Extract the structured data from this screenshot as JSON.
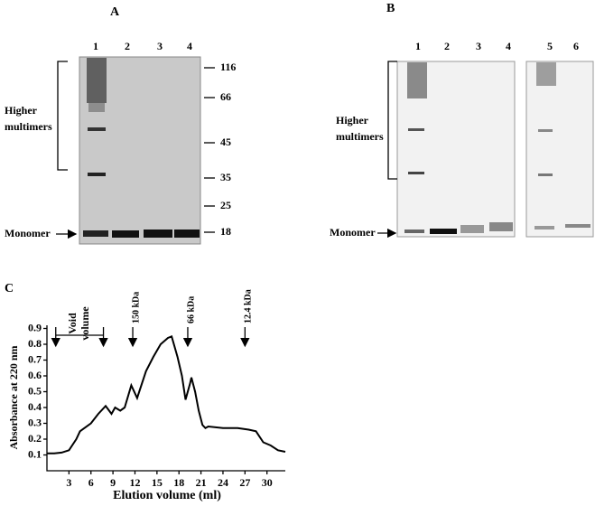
{
  "panel_a": {
    "label": "A",
    "lanes": [
      "1",
      "2",
      "3",
      "4"
    ],
    "markers": [
      "116",
      "66",
      "45",
      "35",
      "25",
      "18"
    ],
    "bracket_label": [
      "Higher",
      "multimers"
    ],
    "monomer_label": "Monomer"
  },
  "panel_b": {
    "label": "B",
    "lanes": [
      "1",
      "2",
      "3",
      "4",
      "5",
      "6"
    ],
    "bracket_label": [
      "Higher",
      "multimers"
    ],
    "monomer_label": "Monomer"
  },
  "chart_data": {
    "type": "line",
    "panel_label": "C",
    "y_label": "Absorbance at 220 nm",
    "x_label": "Elution volume (ml)",
    "x": [
      0,
      1,
      2,
      3,
      4,
      4.5,
      6,
      7,
      8,
      8.8,
      9.3,
      10,
      10.6,
      11.5,
      12.3,
      13.5,
      14.5,
      15.5,
      16.5,
      17,
      17.8,
      18.4,
      18.9,
      19.5,
      19.7,
      20.2,
      20.7,
      21.2,
      21.6,
      22,
      24,
      26,
      27.5,
      28.5,
      29.5,
      30.5,
      31.5,
      32.5
    ],
    "values": [
      0.11,
      0.11,
      0.115,
      0.13,
      0.2,
      0.25,
      0.3,
      0.36,
      0.41,
      0.36,
      0.4,
      0.38,
      0.4,
      0.54,
      0.46,
      0.63,
      0.72,
      0.8,
      0.84,
      0.85,
      0.72,
      0.6,
      0.45,
      0.55,
      0.59,
      0.5,
      0.38,
      0.29,
      0.27,
      0.28,
      0.27,
      0.27,
      0.26,
      0.25,
      0.18,
      0.16,
      0.13,
      0.12
    ],
    "color": "#000000",
    "xlim": [
      0,
      32.5
    ],
    "ylim": [
      0,
      0.92
    ],
    "xticks": [
      3,
      6,
      9,
      12,
      15,
      18,
      21,
      24,
      27,
      30
    ],
    "yticks": [
      0.1,
      0.2,
      0.3,
      0.4,
      0.5,
      0.6,
      0.7,
      0.8,
      0.9
    ],
    "void_volume": {
      "lines": [
        "Void",
        "volume"
      ],
      "x": [
        1.2,
        7.7
      ]
    },
    "annotations": [
      {
        "text": "150 kDa",
        "x": 11.7
      },
      {
        "text": "66 kDa",
        "x": 19.2
      },
      {
        "text": "12.4 kDa",
        "x": 27
      }
    ]
  }
}
